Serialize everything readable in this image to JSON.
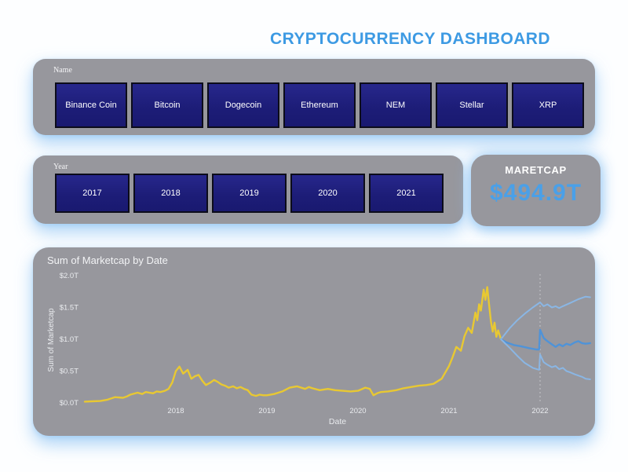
{
  "title": "CRYPTOCURRENCY DASHBOARD",
  "colors": {
    "accent_blue": "#3d9ae3",
    "panel_gray": "#97979d",
    "slicer_button_navy": "#1d1d78",
    "actual_line_yellow": "#e8c832",
    "forecast_line_blue": "#4f93d8",
    "forecast_bound_blue": "#8ab6e4",
    "card_value_blue": "#4aa0e8"
  },
  "name_slicer": {
    "label": "Name",
    "items": [
      "Binance Coin",
      "Bitcoin",
      "Dogecoin",
      "Ethereum",
      "NEM",
      "Stellar",
      "XRP"
    ]
  },
  "year_slicer": {
    "label": "Year",
    "items": [
      "2017",
      "2018",
      "2019",
      "2020",
      "2021"
    ]
  },
  "marketcap_card": {
    "label": "MARETCAP",
    "value": "$494.9T"
  },
  "chart_data": {
    "type": "line",
    "title": "Sum of Marketcap by Date",
    "xlabel": "Date",
    "ylabel": "Sum of Marketcap",
    "xlim": [
      2016.95,
      2022.62
    ],
    "ylim": [
      0,
      2.0
    ],
    "grid": false,
    "legend": "none",
    "x_ticks": [
      2018,
      2019,
      2020,
      2021,
      2022
    ],
    "x_tick_labels": [
      "2018",
      "2019",
      "2020",
      "2021",
      "2022"
    ],
    "y_ticks": [
      0,
      0.5,
      1.0,
      1.5,
      2.0
    ],
    "y_tick_labels": [
      "$0.0T",
      "$0.5T",
      "$1.0T",
      "$1.5T",
      "$2.0T"
    ],
    "forecast_divider_x": 2022.0,
    "series": [
      {
        "name": "Sum of Marketcap (actual)",
        "color": "#e8c832",
        "width": 2.4,
        "x": [
          2017.0,
          2017.08,
          2017.17,
          2017.25,
          2017.33,
          2017.42,
          2017.46,
          2017.5,
          2017.58,
          2017.63,
          2017.67,
          2017.75,
          2017.79,
          2017.83,
          2017.88,
          2017.92,
          2017.96,
          2018.0,
          2018.04,
          2018.08,
          2018.13,
          2018.17,
          2018.21,
          2018.25,
          2018.29,
          2018.33,
          2018.38,
          2018.42,
          2018.46,
          2018.5,
          2018.54,
          2018.58,
          2018.63,
          2018.67,
          2018.71,
          2018.75,
          2018.79,
          2018.83,
          2018.88,
          2018.92,
          2018.96,
          2019.0,
          2019.08,
          2019.17,
          2019.25,
          2019.33,
          2019.42,
          2019.46,
          2019.5,
          2019.58,
          2019.67,
          2019.75,
          2019.83,
          2019.92,
          2020.0,
          2020.08,
          2020.13,
          2020.17,
          2020.21,
          2020.25,
          2020.33,
          2020.42,
          2020.5,
          2020.58,
          2020.67,
          2020.75,
          2020.83,
          2020.92,
          2021.0,
          2021.04,
          2021.08,
          2021.13,
          2021.17,
          2021.21,
          2021.25,
          2021.29,
          2021.31,
          2021.33,
          2021.35,
          2021.38,
          2021.4,
          2021.42,
          2021.44,
          2021.46,
          2021.48,
          2021.5,
          2021.52,
          2021.54,
          2021.57
        ],
        "y": [
          0.02,
          0.025,
          0.03,
          0.05,
          0.09,
          0.08,
          0.1,
          0.13,
          0.16,
          0.14,
          0.17,
          0.15,
          0.18,
          0.17,
          0.19,
          0.22,
          0.32,
          0.5,
          0.57,
          0.46,
          0.52,
          0.38,
          0.42,
          0.44,
          0.35,
          0.28,
          0.32,
          0.36,
          0.33,
          0.29,
          0.27,
          0.24,
          0.26,
          0.23,
          0.25,
          0.22,
          0.2,
          0.13,
          0.11,
          0.13,
          0.12,
          0.12,
          0.14,
          0.18,
          0.24,
          0.26,
          0.22,
          0.25,
          0.23,
          0.2,
          0.22,
          0.2,
          0.19,
          0.18,
          0.19,
          0.24,
          0.22,
          0.12,
          0.15,
          0.17,
          0.18,
          0.2,
          0.23,
          0.25,
          0.27,
          0.28,
          0.3,
          0.38,
          0.58,
          0.72,
          0.88,
          0.82,
          1.05,
          1.18,
          1.1,
          1.42,
          1.3,
          1.55,
          1.45,
          1.78,
          1.62,
          1.82,
          1.55,
          1.28,
          1.12,
          1.26,
          1.04,
          1.14,
          1.0
        ]
      },
      {
        "name": "Forecast upper bound",
        "color": "#8ab6e4",
        "width": 2,
        "x": [
          2021.57,
          2021.67,
          2021.75,
          2021.83,
          2021.92,
          2022.0,
          2022.04,
          2022.08,
          2022.13,
          2022.17,
          2022.21,
          2022.25,
          2022.33,
          2022.42,
          2022.5,
          2022.55
        ],
        "y": [
          1.0,
          1.18,
          1.3,
          1.4,
          1.5,
          1.58,
          1.52,
          1.55,
          1.5,
          1.52,
          1.49,
          1.52,
          1.57,
          1.63,
          1.67,
          1.66
        ]
      },
      {
        "name": "Forecast",
        "color": "#4f93d8",
        "width": 2.4,
        "x": [
          2021.57,
          2021.63,
          2021.71,
          2021.79,
          2021.88,
          2021.96,
          2021.99,
          2022.0,
          2022.04,
          2022.08,
          2022.13,
          2022.17,
          2022.21,
          2022.25,
          2022.29,
          2022.33,
          2022.38,
          2022.42,
          2022.46,
          2022.5,
          2022.55
        ],
        "y": [
          1.0,
          0.95,
          0.91,
          0.89,
          0.86,
          0.84,
          0.84,
          1.15,
          1.02,
          0.97,
          0.92,
          0.88,
          0.92,
          0.89,
          0.93,
          0.91,
          0.95,
          0.97,
          0.94,
          0.93,
          0.94
        ]
      },
      {
        "name": "Forecast lower bound",
        "color": "#8ab6e4",
        "width": 2,
        "x": [
          2021.57,
          2021.67,
          2021.75,
          2021.83,
          2021.92,
          2021.99,
          2022.0,
          2022.04,
          2022.08,
          2022.13,
          2022.17,
          2022.21,
          2022.25,
          2022.29,
          2022.33,
          2022.38,
          2022.42,
          2022.46,
          2022.5,
          2022.55
        ],
        "y": [
          1.0,
          0.86,
          0.74,
          0.63,
          0.55,
          0.52,
          0.76,
          0.64,
          0.6,
          0.56,
          0.58,
          0.53,
          0.55,
          0.5,
          0.48,
          0.45,
          0.43,
          0.41,
          0.38,
          0.37
        ]
      }
    ]
  }
}
